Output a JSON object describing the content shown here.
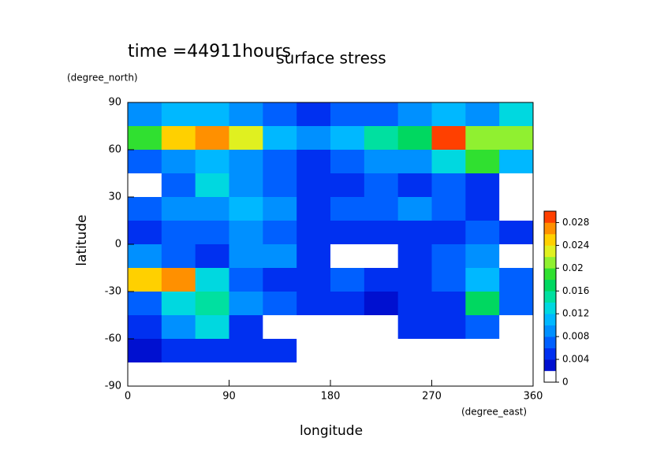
{
  "chart_data": {
    "type": "contour",
    "title": "surface stress",
    "subtitle": "time =44911hours",
    "x_label": "longitude",
    "y_label": "latitude",
    "x_unit": "(degree_east)",
    "y_unit": "(degree_north)",
    "x": [
      15,
      45,
      75,
      105,
      135,
      165,
      195,
      225,
      255,
      285,
      315,
      345
    ],
    "y": [
      82.5,
      67.5,
      52.5,
      37.5,
      22.5,
      7.5,
      -7.5,
      -22.5,
      -37.5,
      -52.5,
      -67.5,
      -82.5
    ],
    "z": [
      [
        0.008,
        0.01,
        0.01,
        0.008,
        0.006,
        0.004,
        0.006,
        0.006,
        0.008,
        0.01,
        0.008,
        0.012
      ],
      [
        0.018,
        0.024,
        0.026,
        0.022,
        0.01,
        0.008,
        0.01,
        0.014,
        0.016,
        0.028,
        0.02,
        0.02
      ],
      [
        0.006,
        0.008,
        0.01,
        0.008,
        0.006,
        0.004,
        0.006,
        0.008,
        0.008,
        0.012,
        0.018,
        0.01
      ],
      [
        0.001,
        0.006,
        0.012,
        0.008,
        0.006,
        0.004,
        0.004,
        0.006,
        0.004,
        0.006,
        0.004,
        0.001
      ],
      [
        0.006,
        0.008,
        0.008,
        0.01,
        0.008,
        0.004,
        0.006,
        0.006,
        0.008,
        0.006,
        0.004,
        0.001
      ],
      [
        0.004,
        0.006,
        0.006,
        0.008,
        0.006,
        0.004,
        0.004,
        0.004,
        0.004,
        0.004,
        0.006,
        0.004
      ],
      [
        0.008,
        0.006,
        0.004,
        0.008,
        0.008,
        0.004,
        0.001,
        0.001,
        0.004,
        0.006,
        0.008,
        0.001
      ],
      [
        0.024,
        0.026,
        0.012,
        0.006,
        0.004,
        0.004,
        0.006,
        0.004,
        0.004,
        0.006,
        0.01,
        0.006
      ],
      [
        0.006,
        0.012,
        0.014,
        0.008,
        0.006,
        0.004,
        0.004,
        0.002,
        0.004,
        0.004,
        0.016,
        0.006
      ],
      [
        0.004,
        0.008,
        0.012,
        0.004,
        0.001,
        0.001,
        0.001,
        0.001,
        0.004,
        0.004,
        0.006,
        0.001
      ],
      [
        0.002,
        0.004,
        0.004,
        0.004,
        0.004,
        0.001,
        0.001,
        0.001,
        0.001,
        0.001,
        0.001,
        0.001
      ],
      [
        0,
        0,
        0,
        0,
        0,
        0,
        0,
        0,
        0,
        0,
        0,
        0
      ]
    ],
    "xlim": [
      0,
      360
    ],
    "ylim": [
      -90,
      90
    ],
    "xticks": [
      0,
      90,
      180,
      270,
      360
    ],
    "yticks": [
      -90,
      -60,
      -30,
      0,
      30,
      60,
      90
    ],
    "clim": [
      0,
      0.03
    ],
    "cticks": [
      0,
      0.004,
      0.008,
      0.012,
      0.016,
      0.02,
      0.024,
      0.028
    ],
    "colors": [
      "#ffffff",
      "#0010d0",
      "#0030f0",
      "#0060ff",
      "#0090ff",
      "#00b8ff",
      "#00d8e0",
      "#00e0a0",
      "#00d860",
      "#30e030",
      "#90f030",
      "#e0f020",
      "#ffd000",
      "#ff9000",
      "#ff4000"
    ]
  }
}
